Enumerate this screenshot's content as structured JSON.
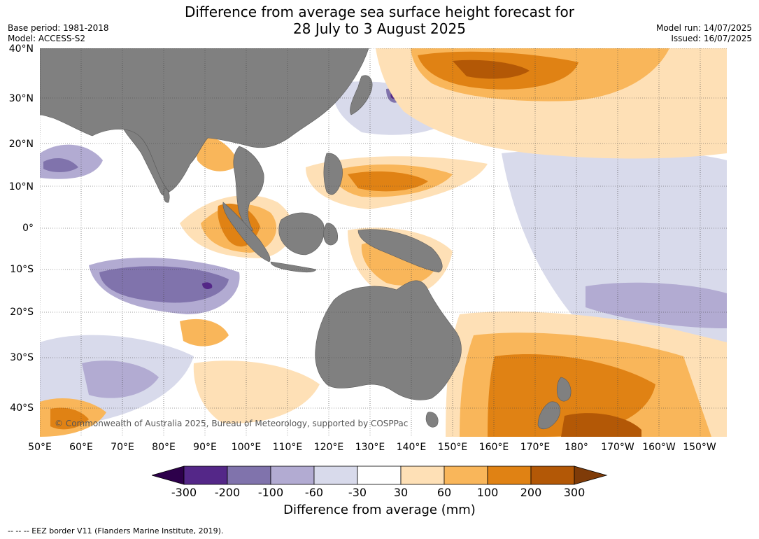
{
  "title": {
    "line1": "Difference from average sea surface height forecast for",
    "line2": "28 July to 3 August 2025"
  },
  "meta_left": {
    "base_period": "Base period: 1981-2018",
    "model": "Model: ACCESS-S2"
  },
  "meta_right": {
    "model_run": "Model run: 14/07/2025",
    "issued": "Issued: 16/07/2025"
  },
  "map": {
    "lat_labels": [
      "40°N",
      "30°N",
      "20°N",
      "10°N",
      "0°",
      "10°S",
      "20°S",
      "30°S",
      "40°S"
    ],
    "lon_labels": [
      "50°E",
      "60°E",
      "70°E",
      "80°E",
      "90°E",
      "100°E",
      "110°E",
      "120°E",
      "130°E",
      "140°E",
      "150°E",
      "160°E",
      "170°E",
      "180°",
      "170°W",
      "160°W",
      "150°W"
    ],
    "copyright": "© Commonwealth of Australia 2025, Bureau of Meteorology, supported by COSPPac",
    "colors": {
      "land": "#808080",
      "ocean_neutral": "#ffffff"
    }
  },
  "colorbar": {
    "title": "Difference from average (mm)",
    "ticks": [
      "-300",
      "-200",
      "-100",
      "-60",
      "-30",
      "30",
      "60",
      "100",
      "200",
      "300"
    ],
    "colors": [
      "#2d004b",
      "#542788",
      "#8073ac",
      "#b2abd2",
      "#d8daeb",
      "#ffffff",
      "#fee0b6",
      "#f9b65a",
      "#e08214",
      "#b35806",
      "#7f3b08"
    ]
  },
  "footer": "--  --  -- EEZ border V11 (Flanders Marine Institute, 2019)."
}
